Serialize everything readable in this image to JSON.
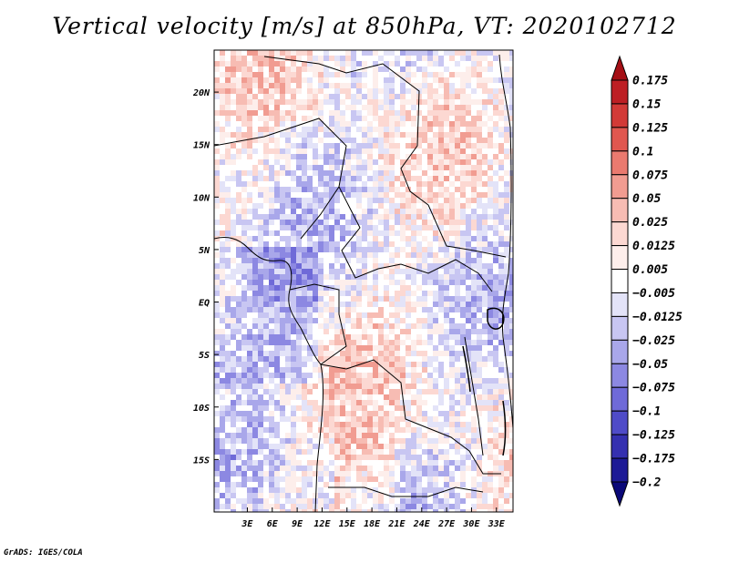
{
  "chart_data": {
    "type": "heatmap",
    "title": "Vertical velocity [m/s] at 850hPa, VT: 2020102712",
    "variable": "Vertical velocity",
    "units": "m/s",
    "level": "850hPa",
    "valid_time": "2020102712",
    "x_axis": {
      "range_deg": [
        -1,
        35
      ],
      "ticks": [
        3,
        6,
        9,
        12,
        15,
        18,
        21,
        24,
        27,
        30,
        33
      ],
      "tick_labels": [
        "3E",
        "6E",
        "9E",
        "12E",
        "15E",
        "18E",
        "21E",
        "24E",
        "27E",
        "30E",
        "33E"
      ]
    },
    "y_axis": {
      "range_deg": [
        -20,
        24
      ],
      "ticks": [
        20,
        15,
        10,
        5,
        0,
        -5,
        -10,
        -15
      ],
      "tick_labels": [
        "20N",
        "15N",
        "10N",
        "5N",
        "EQ",
        "5S",
        "10S",
        "15S"
      ]
    },
    "colorbar": {
      "levels": [
        0.175,
        0.15,
        0.125,
        0.1,
        0.075,
        0.05,
        0.025,
        0.0125,
        0.005,
        -0.005,
        -0.0125,
        -0.025,
        -0.05,
        -0.075,
        -0.1,
        -0.125,
        -0.175,
        -0.2
      ],
      "labels": [
        "0.175",
        "0.15",
        "0.125",
        "0.1",
        "0.075",
        "0.05",
        "0.025",
        "0.0125",
        "0.005",
        "−0.005",
        "−0.0125",
        "−0.025",
        "−0.05",
        "−0.075",
        "−0.1",
        "−0.125",
        "−0.175",
        "−0.2"
      ],
      "colors": [
        "#a50f15",
        "#bd1f24",
        "#d23a37",
        "#e0574f",
        "#ea7a6f",
        "#f19c91",
        "#f7bcb3",
        "#fcd8d2",
        "#fdeeeb",
        "#ffffff",
        "#e3e3f8",
        "#c8c6f2",
        "#a9a7ea",
        "#8c88e2",
        "#6f6ad8",
        "#4f4bc8",
        "#3530b0",
        "#1d1a96",
        "#0a0878"
      ]
    }
  },
  "credit": "GrADS: IGES/COLA"
}
